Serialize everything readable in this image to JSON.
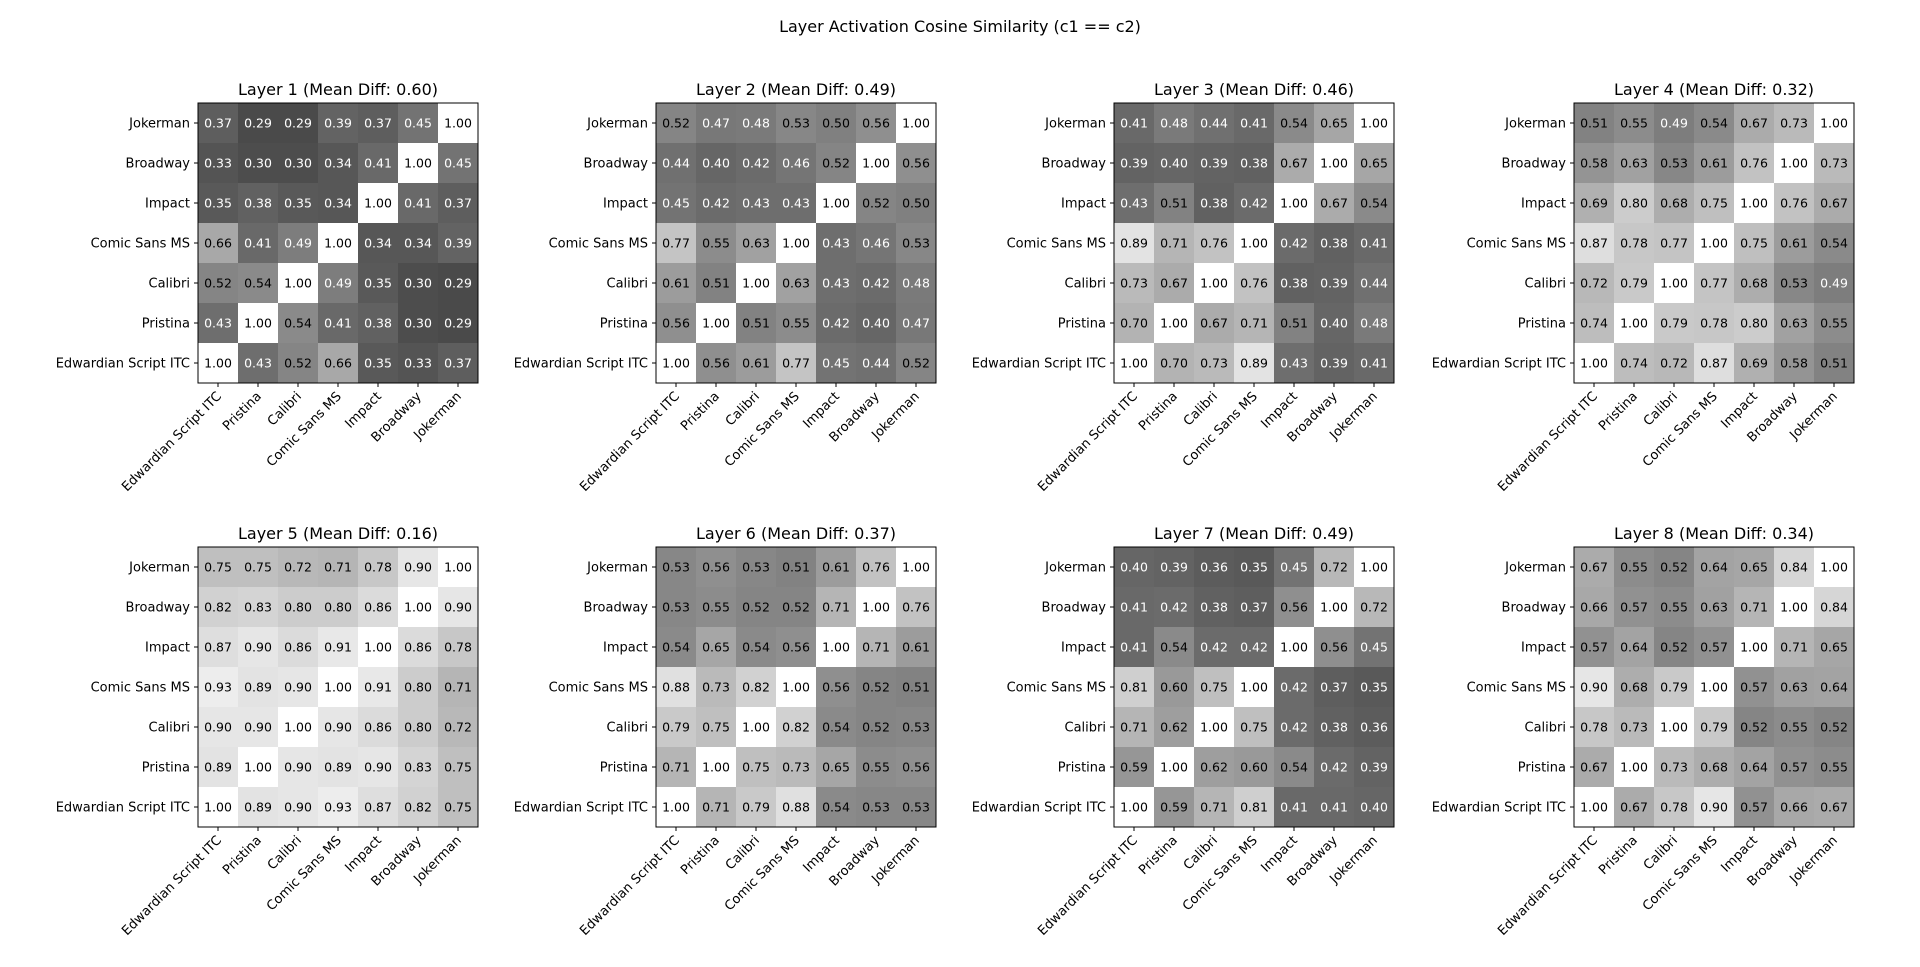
{
  "chart_data": {
    "type": "heatmap",
    "title": "Layer Activation Cosine Similarity (c1 == c2)",
    "colormap": "gray",
    "value_range": [
      0,
      1
    ],
    "x_labels": [
      "Edwardian Script ITC",
      "Pristina",
      "Calibri",
      "Comic Sans MS",
      "Impact",
      "Broadway",
      "Jokerman"
    ],
    "y_labels": [
      "Edwardian Script ITC",
      "Pristina",
      "Calibri",
      "Comic Sans MS",
      "Impact",
      "Broadway",
      "Jokerman"
    ],
    "panels": [
      {
        "title": "Layer 1 (Mean Diff: 0.60)",
        "matrix": [
          [
            1.0,
            0.43,
            0.52,
            0.66,
            0.35,
            0.33,
            0.37
          ],
          [
            0.43,
            1.0,
            0.54,
            0.41,
            0.38,
            0.3,
            0.29
          ],
          [
            0.52,
            0.54,
            1.0,
            0.49,
            0.35,
            0.3,
            0.29
          ],
          [
            0.66,
            0.41,
            0.49,
            1.0,
            0.34,
            0.34,
            0.39
          ],
          [
            0.35,
            0.38,
            0.35,
            0.34,
            1.0,
            0.41,
            0.37
          ],
          [
            0.33,
            0.3,
            0.3,
            0.34,
            0.41,
            1.0,
            0.45
          ],
          [
            0.37,
            0.29,
            0.29,
            0.39,
            0.37,
            0.45,
            1.0
          ]
        ]
      },
      {
        "title": "Layer 2 (Mean Diff: 0.49)",
        "matrix": [
          [
            1.0,
            0.56,
            0.61,
            0.77,
            0.45,
            0.44,
            0.52
          ],
          [
            0.56,
            1.0,
            0.51,
            0.55,
            0.42,
            0.4,
            0.47
          ],
          [
            0.61,
            0.51,
            1.0,
            0.63,
            0.43,
            0.42,
            0.48
          ],
          [
            0.77,
            0.55,
            0.63,
            1.0,
            0.43,
            0.46,
            0.53
          ],
          [
            0.45,
            0.42,
            0.43,
            0.43,
            1.0,
            0.52,
            0.5
          ],
          [
            0.44,
            0.4,
            0.42,
            0.46,
            0.52,
            1.0,
            0.56
          ],
          [
            0.52,
            0.47,
            0.48,
            0.53,
            0.5,
            0.56,
            1.0
          ]
        ]
      },
      {
        "title": "Layer 3 (Mean Diff: 0.46)",
        "matrix": [
          [
            1.0,
            0.7,
            0.73,
            0.89,
            0.43,
            0.39,
            0.41
          ],
          [
            0.7,
            1.0,
            0.67,
            0.71,
            0.51,
            0.4,
            0.48
          ],
          [
            0.73,
            0.67,
            1.0,
            0.76,
            0.38,
            0.39,
            0.44
          ],
          [
            0.89,
            0.71,
            0.76,
            1.0,
            0.42,
            0.38,
            0.41
          ],
          [
            0.43,
            0.51,
            0.38,
            0.42,
            1.0,
            0.67,
            0.54
          ],
          [
            0.39,
            0.4,
            0.39,
            0.38,
            0.67,
            1.0,
            0.65
          ],
          [
            0.41,
            0.48,
            0.44,
            0.41,
            0.54,
            0.65,
            1.0
          ]
        ]
      },
      {
        "title": "Layer 4 (Mean Diff: 0.32)",
        "matrix": [
          [
            1.0,
            0.74,
            0.72,
            0.87,
            0.69,
            0.58,
            0.51
          ],
          [
            0.74,
            1.0,
            0.79,
            0.78,
            0.8,
            0.63,
            0.55
          ],
          [
            0.72,
            0.79,
            1.0,
            0.77,
            0.68,
            0.53,
            0.49
          ],
          [
            0.87,
            0.78,
            0.77,
            1.0,
            0.75,
            0.61,
            0.54
          ],
          [
            0.69,
            0.8,
            0.68,
            0.75,
            1.0,
            0.76,
            0.67
          ],
          [
            0.58,
            0.63,
            0.53,
            0.61,
            0.76,
            1.0,
            0.73
          ],
          [
            0.51,
            0.55,
            0.49,
            0.54,
            0.67,
            0.73,
            1.0
          ]
        ]
      },
      {
        "title": "Layer 5 (Mean Diff: 0.16)",
        "matrix": [
          [
            1.0,
            0.89,
            0.9,
            0.93,
            0.87,
            0.82,
            0.75
          ],
          [
            0.89,
            1.0,
            0.9,
            0.89,
            0.9,
            0.83,
            0.75
          ],
          [
            0.9,
            0.9,
            1.0,
            0.9,
            0.86,
            0.8,
            0.72
          ],
          [
            0.93,
            0.89,
            0.9,
            1.0,
            0.91,
            0.8,
            0.71
          ],
          [
            0.87,
            0.9,
            0.86,
            0.91,
            1.0,
            0.86,
            0.78
          ],
          [
            0.82,
            0.83,
            0.8,
            0.8,
            0.86,
            1.0,
            0.9
          ],
          [
            0.75,
            0.75,
            0.72,
            0.71,
            0.78,
            0.9,
            1.0
          ]
        ]
      },
      {
        "title": "Layer 6 (Mean Diff: 0.37)",
        "matrix": [
          [
            1.0,
            0.71,
            0.79,
            0.88,
            0.54,
            0.53,
            0.53
          ],
          [
            0.71,
            1.0,
            0.75,
            0.73,
            0.65,
            0.55,
            0.56
          ],
          [
            0.79,
            0.75,
            1.0,
            0.82,
            0.54,
            0.52,
            0.53
          ],
          [
            0.88,
            0.73,
            0.82,
            1.0,
            0.56,
            0.52,
            0.51
          ],
          [
            0.54,
            0.65,
            0.54,
            0.56,
            1.0,
            0.71,
            0.61
          ],
          [
            0.53,
            0.55,
            0.52,
            0.52,
            0.71,
            1.0,
            0.76
          ],
          [
            0.53,
            0.56,
            0.53,
            0.51,
            0.61,
            0.76,
            1.0
          ]
        ]
      },
      {
        "title": "Layer 7 (Mean Diff: 0.49)",
        "matrix": [
          [
            1.0,
            0.59,
            0.71,
            0.81,
            0.41,
            0.41,
            0.4
          ],
          [
            0.59,
            1.0,
            0.62,
            0.6,
            0.54,
            0.42,
            0.39
          ],
          [
            0.71,
            0.62,
            1.0,
            0.75,
            0.42,
            0.38,
            0.36
          ],
          [
            0.81,
            0.6,
            0.75,
            1.0,
            0.42,
            0.37,
            0.35
          ],
          [
            0.41,
            0.54,
            0.42,
            0.42,
            1.0,
            0.56,
            0.45
          ],
          [
            0.41,
            0.42,
            0.38,
            0.37,
            0.56,
            1.0,
            0.72
          ],
          [
            0.4,
            0.39,
            0.36,
            0.35,
            0.45,
            0.72,
            1.0
          ]
        ]
      },
      {
        "title": "Layer 8 (Mean Diff: 0.34)",
        "matrix": [
          [
            1.0,
            0.67,
            0.78,
            0.9,
            0.57,
            0.66,
            0.67
          ],
          [
            0.67,
            1.0,
            0.73,
            0.68,
            0.64,
            0.57,
            0.55
          ],
          [
            0.78,
            0.73,
            1.0,
            0.79,
            0.52,
            0.55,
            0.52
          ],
          [
            0.9,
            0.68,
            0.79,
            1.0,
            0.57,
            0.63,
            0.64
          ],
          [
            0.57,
            0.64,
            0.52,
            0.57,
            1.0,
            0.71,
            0.65
          ],
          [
            0.66,
            0.57,
            0.55,
            0.63,
            0.71,
            1.0,
            0.84
          ],
          [
            0.67,
            0.55,
            0.52,
            0.64,
            0.65,
            0.84,
            1.0
          ]
        ]
      }
    ]
  }
}
